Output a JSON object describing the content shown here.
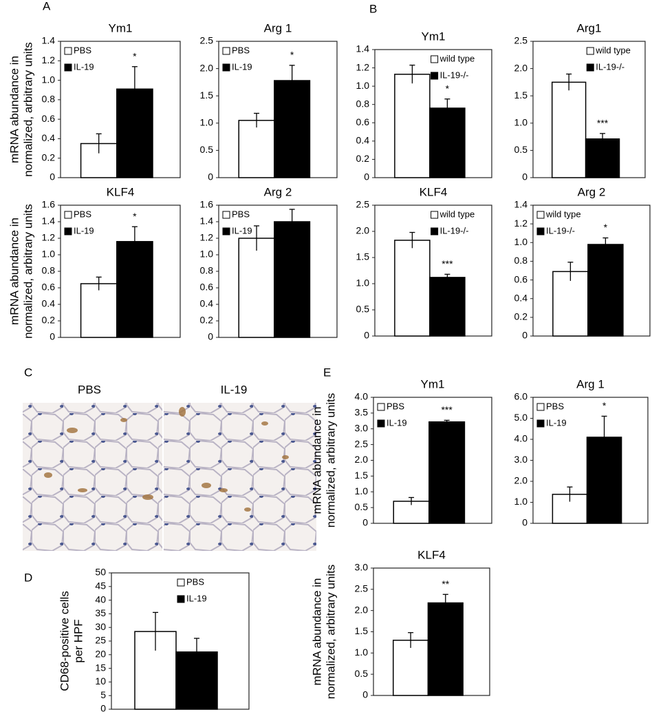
{
  "panel_labels": [
    "A",
    "B",
    "C",
    "D",
    "E"
  ],
  "histology": {
    "labels": [
      "PBS",
      "IL-19"
    ]
  },
  "chart_data": [
    {
      "type": "bar",
      "title": "Ym1",
      "y_label": [
        "mRNA abundance in",
        "normalized, arbitrary units"
      ],
      "legend": "upper left",
      "annotation": "*",
      "series": [
        {
          "name": "PBS",
          "color": "#ffffff",
          "values": [
            0.35
          ],
          "errors": [
            0.1
          ]
        },
        {
          "name": "IL-19",
          "color": "#000000",
          "values": [
            0.91
          ],
          "errors": [
            0.23
          ]
        }
      ],
      "ylim": [
        0,
        1.4
      ],
      "yticks": [
        0,
        0.2,
        0.4,
        0.6,
        0.8,
        {
          "value": 1,
          "label": "1.0"
        },
        1.2,
        1.4
      ]
    },
    {
      "type": "bar",
      "title": "Arg 1",
      "legend": "upper left",
      "annotation": "*",
      "series": [
        {
          "name": "PBS",
          "color": "#ffffff",
          "values": [
            1.05
          ],
          "errors": [
            0.13
          ]
        },
        {
          "name": "IL-19",
          "color": "#000000",
          "values": [
            1.78
          ],
          "errors": [
            0.28
          ]
        }
      ],
      "ylim": [
        0,
        2.5
      ],
      "yticks": [
        0,
        0.5,
        {
          "value": 1,
          "label": "1.0"
        },
        1.5,
        {
          "value": 2,
          "label": "2.0"
        },
        2.5
      ]
    },
    {
      "type": "bar",
      "title": "Ym1",
      "legend": "upper right",
      "annotation": "*",
      "series": [
        {
          "name": "wild type",
          "color": "#ffffff",
          "values": [
            1.13
          ],
          "errors": [
            0.1
          ]
        },
        {
          "name": "IL-19-/-",
          "color": "#000000",
          "values": [
            0.76
          ],
          "errors": [
            0.1
          ]
        }
      ],
      "ylim": [
        0,
        1.4
      ],
      "yticks": [
        0,
        0.2,
        0.4,
        0.6,
        0.8,
        {
          "value": 1,
          "label": "1.0"
        },
        1.2,
        1.4
      ]
    },
    {
      "type": "bar",
      "title": "Arg1",
      "legend": "upper right",
      "annotation": "***",
      "series": [
        {
          "name": "wild type",
          "color": "#ffffff",
          "values": [
            1.75
          ],
          "errors": [
            0.15
          ]
        },
        {
          "name": "IL-19-/-",
          "color": "#000000",
          "values": [
            0.71
          ],
          "errors": [
            0.1
          ]
        }
      ],
      "ylim": [
        0,
        2.5
      ],
      "yticks": [
        0,
        0.5,
        {
          "value": 1,
          "label": "1.0"
        },
        1.5,
        {
          "value": 2,
          "label": "2.0"
        },
        2.5
      ]
    },
    {
      "type": "bar",
      "title": "KLF4",
      "y_label": [
        "mRNA abundance in",
        "normalized, arbitrary units"
      ],
      "legend": "upper left",
      "annotation": "*",
      "series": [
        {
          "name": "PBS",
          "color": "#ffffff",
          "values": [
            0.65
          ],
          "errors": [
            0.08
          ]
        },
        {
          "name": "IL-19",
          "color": "#000000",
          "values": [
            1.16
          ],
          "errors": [
            0.18
          ]
        }
      ],
      "ylim": [
        0,
        1.6
      ],
      "yticks": [
        0,
        0.2,
        0.4,
        0.6,
        0.8,
        {
          "value": 1,
          "label": "1.0"
        },
        1.2,
        1.4,
        1.6
      ]
    },
    {
      "type": "bar",
      "title": "Arg 2",
      "legend": "upper left",
      "series": [
        {
          "name": "PBS",
          "color": "#ffffff",
          "values": [
            1.2
          ],
          "errors": [
            0.15
          ]
        },
        {
          "name": "IL-19",
          "color": "#000000",
          "values": [
            1.4
          ],
          "errors": [
            0.15
          ]
        }
      ],
      "ylim": [
        0,
        1.6
      ],
      "yticks": [
        0,
        0.2,
        0.4,
        0.6,
        0.8,
        {
          "value": 1,
          "label": "1.0"
        },
        1.2,
        1.4,
        1.6
      ]
    },
    {
      "type": "bar",
      "title": "KLF4",
      "legend": "upper right",
      "annotation": "***",
      "series": [
        {
          "name": "wild type",
          "color": "#ffffff",
          "values": [
            1.83
          ],
          "errors": [
            0.15
          ]
        },
        {
          "name": "IL-19-/-",
          "color": "#000000",
          "values": [
            1.12
          ],
          "errors": [
            0.06
          ]
        }
      ],
      "ylim": [
        0,
        2.5
      ],
      "yticks": [
        0,
        0.5,
        {
          "value": 1,
          "label": "1.0"
        },
        1.5,
        {
          "value": 2,
          "label": "2.0"
        },
        2.5
      ]
    },
    {
      "type": "bar",
      "title": "Arg 2",
      "legend": "upper left",
      "annotation": "*",
      "series": [
        {
          "name": "wild type",
          "color": "#ffffff",
          "values": [
            0.69
          ],
          "errors": [
            0.1
          ]
        },
        {
          "name": "IL-19-/-",
          "color": "#000000",
          "values": [
            0.98
          ],
          "errors": [
            0.07
          ]
        }
      ],
      "ylim": [
        0,
        1.4
      ],
      "yticks": [
        0,
        0.2,
        0.4,
        0.6,
        0.8,
        {
          "value": 1,
          "label": "1.0"
        },
        1.2,
        1.4
      ]
    },
    {
      "type": "bar",
      "y_label": [
        "CD68-positive cells",
        "per HPF"
      ],
      "legend": "upper right",
      "series": [
        {
          "name": "PBS",
          "color": "#ffffff",
          "values": [
            28.5
          ],
          "errors": [
            7
          ]
        },
        {
          "name": "IL-19",
          "color": "#000000",
          "values": [
            21
          ],
          "errors": [
            5
          ]
        }
      ],
      "ylim": [
        0,
        50
      ],
      "yticks": [
        0,
        5,
        10,
        15,
        20,
        25,
        30,
        35,
        40,
        45,
        50
      ]
    },
    {
      "type": "bar",
      "title": "Ym1",
      "y_label": [
        "mRNA abundance in",
        "normalized, arbitrary units"
      ],
      "legend": "upper left",
      "annotation": "***",
      "series": [
        {
          "name": "PBS",
          "color": "#ffffff",
          "values": [
            0.7
          ],
          "errors": [
            0.12
          ]
        },
        {
          "name": "IL-19",
          "color": "#000000",
          "values": [
            3.22
          ],
          "errors": [
            0.05
          ]
        }
      ],
      "ylim": [
        0,
        4
      ],
      "yticks": [
        0,
        0.5,
        {
          "value": 1,
          "label": "1.0"
        },
        1.5,
        {
          "value": 2,
          "label": "2.0"
        },
        2.5,
        {
          "value": 3,
          "label": "3.0"
        },
        3.5,
        {
          "value": 4,
          "label": "4.0"
        }
      ]
    },
    {
      "type": "bar",
      "title": "Arg 1",
      "legend": "upper left",
      "annotation": "*",
      "series": [
        {
          "name": "PBS",
          "color": "#ffffff",
          "values": [
            1.38
          ],
          "errors": [
            0.35
          ]
        },
        {
          "name": "IL-19",
          "color": "#000000",
          "values": [
            4.1
          ],
          "errors": [
            1.0
          ]
        }
      ],
      "ylim": [
        0,
        6
      ],
      "yticks": [
        0,
        {
          "value": 1,
          "label": "1.0"
        },
        {
          "value": 2,
          "label": "2.0"
        },
        {
          "value": 3,
          "label": "3.0"
        },
        {
          "value": 4,
          "label": "4.0"
        },
        {
          "value": 5,
          "label": "5.0"
        },
        {
          "value": 6,
          "label": "6.0"
        }
      ]
    },
    {
      "type": "bar",
      "title": "KLF4",
      "y_label": [
        "mRNA abundance in",
        "normalized, arbitrary units"
      ],
      "annotation": "**",
      "series": [
        {
          "name": "PBS",
          "color": "#ffffff",
          "values": [
            1.3
          ],
          "errors": [
            0.18
          ]
        },
        {
          "name": "IL-19",
          "color": "#000000",
          "values": [
            2.18
          ],
          "errors": [
            0.2
          ]
        }
      ],
      "ylim": [
        0,
        3
      ],
      "yticks": [
        0,
        0.5,
        {
          "value": 1,
          "label": "1.0"
        },
        1.5,
        {
          "value": 2,
          "label": "2.0"
        },
        2.5,
        {
          "value": 3,
          "label": "3.0"
        }
      ]
    }
  ]
}
